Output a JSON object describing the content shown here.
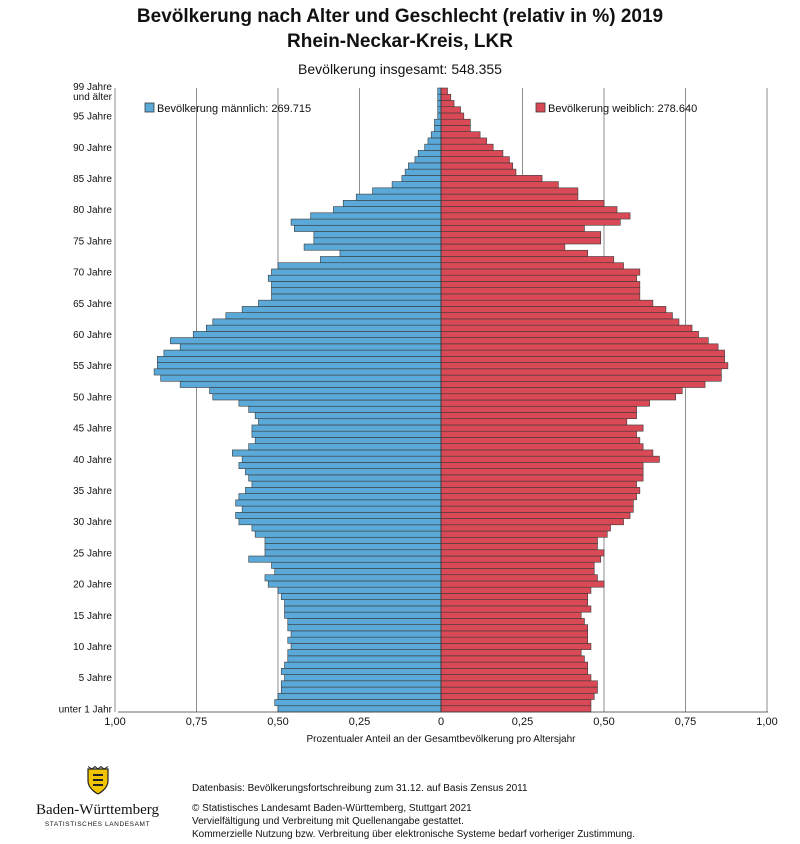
{
  "header": {
    "title_line1": "Bevölkerung nach Alter und Geschlecht (relativ in %) 2019",
    "title_line2": "Rhein-Neckar-Kreis, LKR",
    "subtitle": "Bevölkerung insgesamt: 548.355"
  },
  "colors": {
    "male": "#5aa9d8",
    "female": "#d94a56",
    "outline": "#3a3a3a",
    "grid": "#8c8c8c"
  },
  "chart_data": {
    "type": "bar",
    "orientation": "horizontal-population-pyramid",
    "title": "Bevölkerung nach Alter und Geschlecht (relativ in %) 2019",
    "subtitle": "Rhein-Neckar-Kreis, LKR",
    "xlabel": "Prozentualer Anteil an der Gesamtbevölkerung pro Altersjahr",
    "xlim": [
      -1.0,
      1.0
    ],
    "x_ticks": [
      "1,00",
      "0,75",
      "0,50",
      "0,25",
      "0",
      "0,25",
      "0,50",
      "0,75",
      "1,00"
    ],
    "y_ticks": [
      {
        "age": 0,
        "label": "unter 1 Jahr"
      },
      {
        "age": 5,
        "label": "5 Jahre"
      },
      {
        "age": 10,
        "label": "10 Jahre"
      },
      {
        "age": 15,
        "label": "15 Jahre"
      },
      {
        "age": 20,
        "label": "20 Jahre"
      },
      {
        "age": 25,
        "label": "25 Jahre"
      },
      {
        "age": 30,
        "label": "30 Jahre"
      },
      {
        "age": 35,
        "label": "35 Jahre"
      },
      {
        "age": 40,
        "label": "40 Jahre"
      },
      {
        "age": 45,
        "label": "45 Jahre"
      },
      {
        "age": 50,
        "label": "50 Jahre"
      },
      {
        "age": 55,
        "label": "55 Jahre"
      },
      {
        "age": 60,
        "label": "60 Jahre"
      },
      {
        "age": 65,
        "label": "65 Jahre"
      },
      {
        "age": 70,
        "label": "70 Jahre"
      },
      {
        "age": 75,
        "label": "75 Jahre"
      },
      {
        "age": 80,
        "label": "80 Jahre"
      },
      {
        "age": 85,
        "label": "85 Jahre"
      },
      {
        "age": 90,
        "label": "90 Jahre"
      },
      {
        "age": 95,
        "label": "95 Jahre"
      },
      {
        "age": 99,
        "label": "99 Jahre\nund älter"
      }
    ],
    "grid": true,
    "legend": [
      {
        "name": "Bevölkerung männlich: 269.715",
        "position": "top-left"
      },
      {
        "name": "Bevölkerung weiblich: 278.640",
        "position": "top-right"
      }
    ],
    "series": [
      {
        "name": "Bevölkerung männlich: 269.715",
        "values": [
          0.5,
          0.51,
          0.5,
          0.49,
          0.49,
          0.48,
          0.49,
          0.48,
          0.47,
          0.47,
          0.46,
          0.47,
          0.46,
          0.47,
          0.47,
          0.48,
          0.48,
          0.48,
          0.49,
          0.5,
          0.53,
          0.54,
          0.51,
          0.52,
          0.59,
          0.54,
          0.54,
          0.54,
          0.57,
          0.58,
          0.62,
          0.63,
          0.61,
          0.63,
          0.62,
          0.6,
          0.58,
          0.59,
          0.6,
          0.62,
          0.61,
          0.64,
          0.59,
          0.57,
          0.58,
          0.58,
          0.56,
          0.57,
          0.59,
          0.62,
          0.7,
          0.71,
          0.8,
          0.86,
          0.88,
          0.87,
          0.87,
          0.85,
          0.8,
          0.83,
          0.76,
          0.72,
          0.7,
          0.66,
          0.61,
          0.56,
          0.52,
          0.52,
          0.52,
          0.53,
          0.52,
          0.5,
          0.37,
          0.31,
          0.42,
          0.39,
          0.39,
          0.45,
          0.46,
          0.4,
          0.33,
          0.3,
          0.26,
          0.21,
          0.15,
          0.12,
          0.11,
          0.1,
          0.08,
          0.07,
          0.05,
          0.04,
          0.03,
          0.02,
          0.02,
          0.01,
          0.01,
          0.01,
          0.01,
          0.01
        ]
      },
      {
        "name": "Bevölkerung weiblich: 278.640",
        "values": [
          0.46,
          0.46,
          0.47,
          0.48,
          0.48,
          0.46,
          0.45,
          0.45,
          0.44,
          0.43,
          0.46,
          0.45,
          0.45,
          0.45,
          0.44,
          0.43,
          0.46,
          0.45,
          0.45,
          0.46,
          0.5,
          0.48,
          0.47,
          0.47,
          0.49,
          0.5,
          0.48,
          0.48,
          0.51,
          0.52,
          0.56,
          0.58,
          0.59,
          0.59,
          0.6,
          0.61,
          0.6,
          0.62,
          0.62,
          0.62,
          0.67,
          0.65,
          0.62,
          0.61,
          0.6,
          0.62,
          0.57,
          0.6,
          0.6,
          0.64,
          0.72,
          0.74,
          0.81,
          0.86,
          0.86,
          0.88,
          0.87,
          0.87,
          0.85,
          0.82,
          0.79,
          0.77,
          0.73,
          0.71,
          0.69,
          0.65,
          0.61,
          0.61,
          0.61,
          0.6,
          0.61,
          0.56,
          0.53,
          0.45,
          0.38,
          0.49,
          0.49,
          0.44,
          0.55,
          0.58,
          0.54,
          0.5,
          0.42,
          0.42,
          0.36,
          0.31,
          0.23,
          0.22,
          0.21,
          0.19,
          0.16,
          0.14,
          0.12,
          0.09,
          0.09,
          0.07,
          0.06,
          0.04,
          0.03,
          0.02
        ]
      }
    ]
  },
  "logo": {
    "name": "Baden-Württemberg",
    "sub": "STATISTISCHES LANDESAMT"
  },
  "footer": {
    "line1": "Datenbasis: Bevölkerungsfortschreibung zum 31.12. auf Basis Zensus 2011",
    "line2": "© Statistisches Landesamt Baden-Württemberg, Stuttgart 2021",
    "line3": "Vervielfältigung und Verbreitung mit Quellenangabe gestattet.",
    "line4": "Kommerzielle Nutzung bzw. Verbreitung über elektronische Systeme bedarf vorheriger Zustimmung."
  }
}
